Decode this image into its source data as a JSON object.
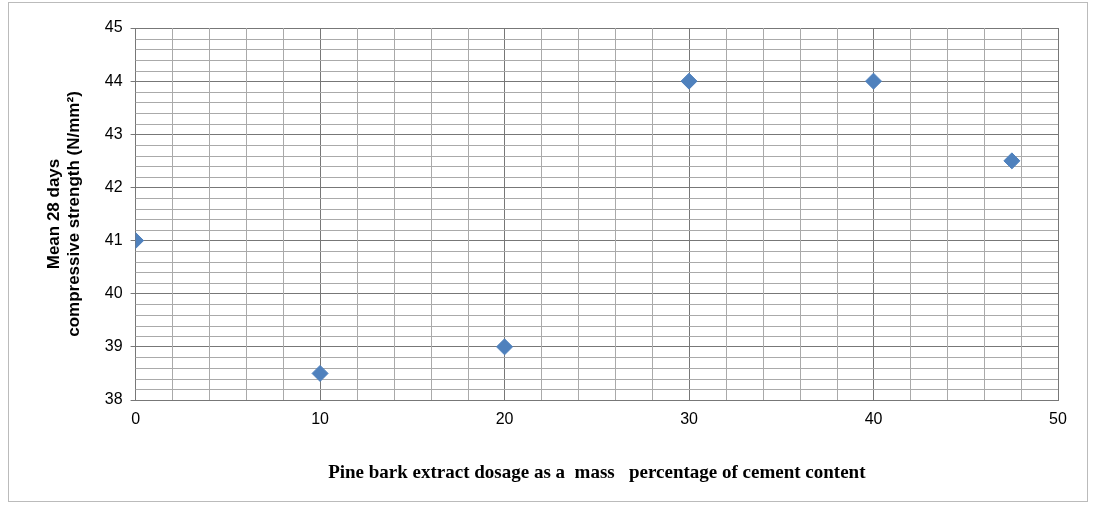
{
  "chart_data": {
    "type": "scatter",
    "xlabel": "Pine bark extract dosage as a  mass   percentage of cement content",
    "ylabel": "Mean 28 days compressive strength (N/mm²)",
    "x": [
      0,
      10,
      20,
      30,
      40,
      47.5
    ],
    "values": [
      41,
      38.5,
      39,
      44,
      44,
      42.5
    ],
    "color": "#4f81bd",
    "marker": "diamond",
    "grid": true,
    "legend": false,
    "xlim": [
      0,
      50
    ],
    "xticks": [
      0,
      10,
      20,
      30,
      40,
      50
    ],
    "ylim": [
      38,
      45
    ],
    "yticks": [
      38,
      39,
      40,
      41,
      42,
      43,
      44,
      45
    ]
  }
}
